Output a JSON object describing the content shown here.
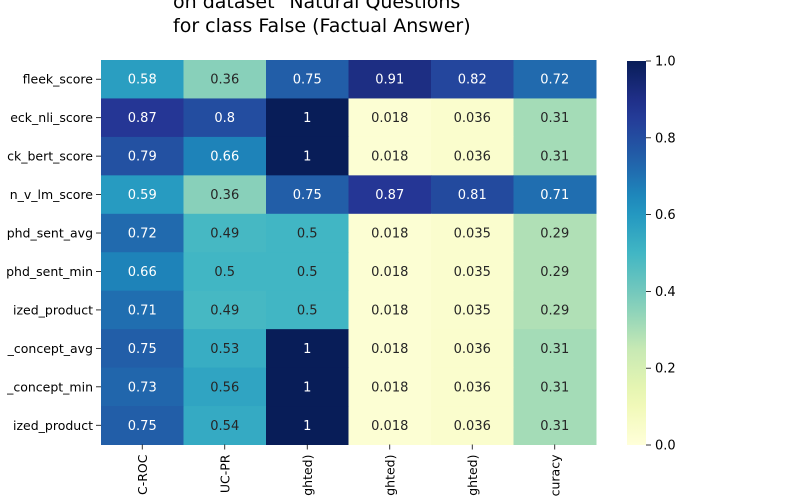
{
  "chart_data": {
    "type": "heatmap",
    "title_lines": [
      "on dataset \"Natural Questions\"",
      "for class False (Factual Answer)"
    ],
    "rows": [
      "fleek_score",
      "eck_nli_score",
      "ck_bert_score",
      "n_v_lm_score",
      "phd_sent_avg",
      "phd_sent_min",
      "ized_product",
      "_concept_avg",
      "_concept_min",
      "ized_product"
    ],
    "columns": [
      "C-ROC",
      "UC-PR",
      "ghted)",
      "ghted)",
      "ghted)",
      "curacy"
    ],
    "values": [
      [
        0.58,
        0.36,
        0.75,
        0.91,
        0.82,
        0.72
      ],
      [
        0.87,
        0.8,
        1,
        0.018,
        0.036,
        0.31
      ],
      [
        0.79,
        0.66,
        1,
        0.018,
        0.036,
        0.31
      ],
      [
        0.59,
        0.36,
        0.75,
        0.87,
        0.81,
        0.71
      ],
      [
        0.72,
        0.49,
        0.5,
        0.018,
        0.035,
        0.29
      ],
      [
        0.66,
        0.5,
        0.5,
        0.018,
        0.035,
        0.29
      ],
      [
        0.71,
        0.49,
        0.5,
        0.018,
        0.035,
        0.29
      ],
      [
        0.75,
        0.53,
        1,
        0.018,
        0.036,
        0.31
      ],
      [
        0.73,
        0.56,
        1,
        0.018,
        0.036,
        0.31
      ],
      [
        0.75,
        0.54,
        1,
        0.018,
        0.036,
        0.31
      ]
    ],
    "labels": [
      [
        "0.58",
        "0.36",
        "0.75",
        "0.91",
        "0.82",
        "0.72"
      ],
      [
        "0.87",
        "0.8",
        "1",
        "0.018",
        "0.036",
        "0.31"
      ],
      [
        "0.79",
        "0.66",
        "1",
        "0.018",
        "0.036",
        "0.31"
      ],
      [
        "0.59",
        "0.36",
        "0.75",
        "0.87",
        "0.81",
        "0.71"
      ],
      [
        "0.72",
        "0.49",
        "0.5",
        "0.018",
        "0.035",
        "0.29"
      ],
      [
        "0.66",
        "0.5",
        "0.5",
        "0.018",
        "0.035",
        "0.29"
      ],
      [
        "0.71",
        "0.49",
        "0.5",
        "0.018",
        "0.035",
        "0.29"
      ],
      [
        "0.75",
        "0.53",
        "1",
        "0.018",
        "0.036",
        "0.31"
      ],
      [
        "0.73",
        "0.56",
        "1",
        "0.018",
        "0.036",
        "0.31"
      ],
      [
        "0.75",
        "0.54",
        "1",
        "0.018",
        "0.036",
        "0.31"
      ]
    ],
    "colormap": "YlGnBu",
    "vmin": 0,
    "vmax": 1,
    "colorbar_ticks": [
      "0.0",
      "0.2",
      "0.4",
      "0.6",
      "0.8",
      "1.0"
    ]
  }
}
